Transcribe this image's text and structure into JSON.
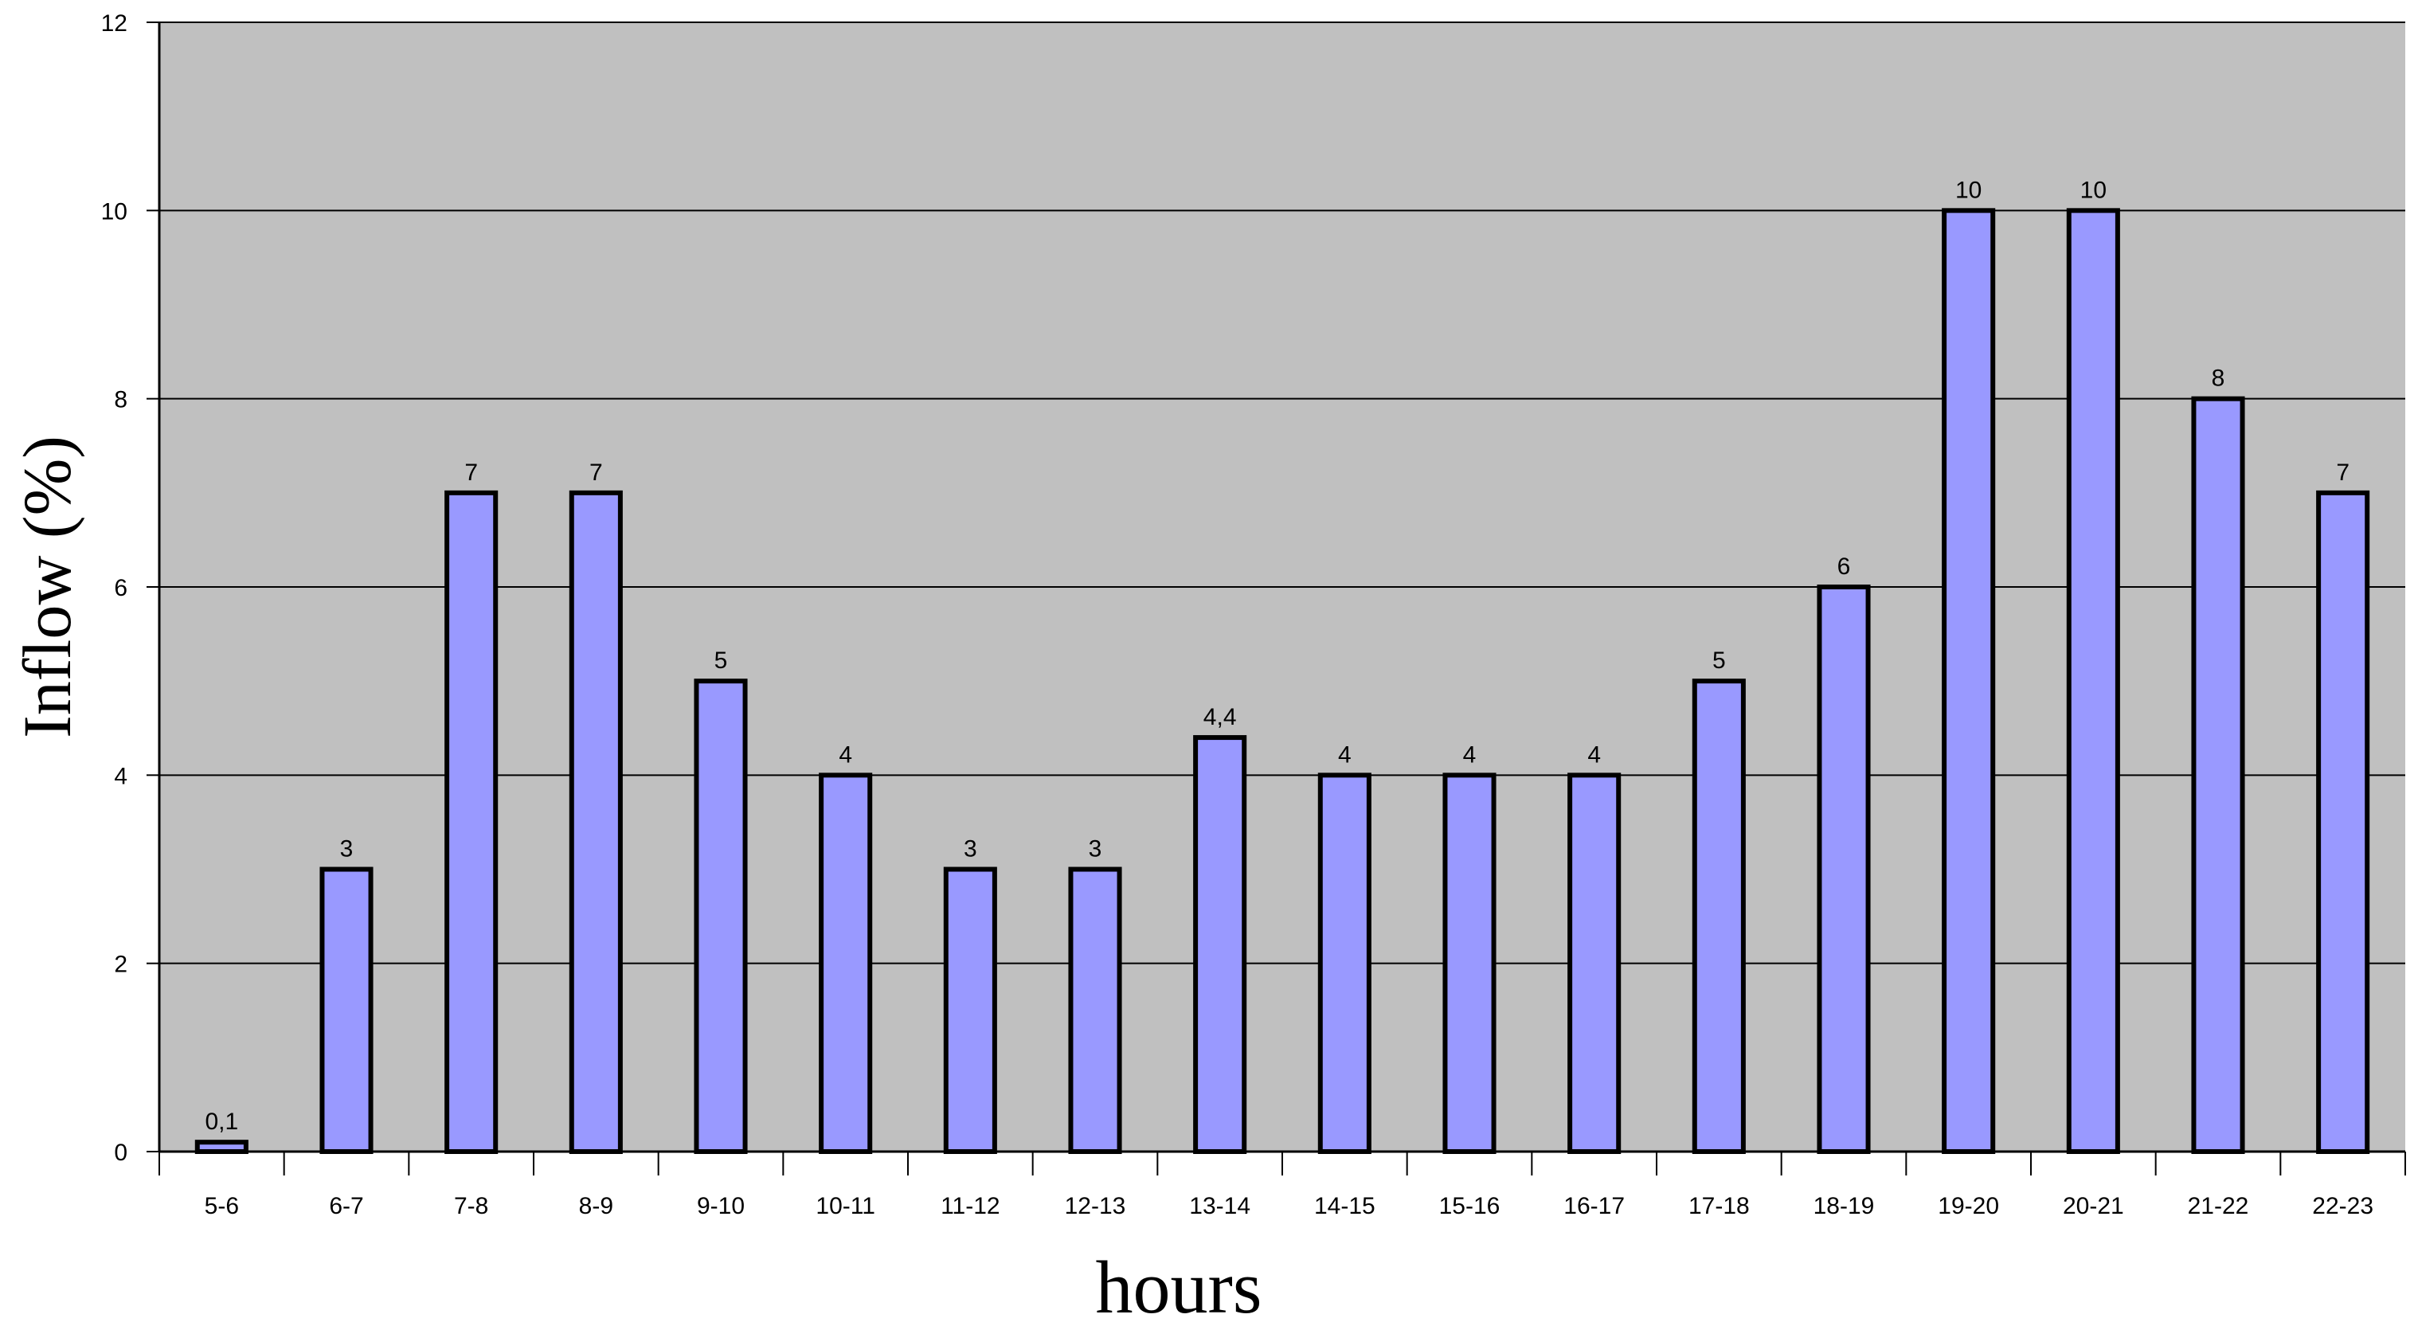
{
  "chart_data": {
    "type": "bar",
    "xlabel": "hours",
    "ylabel": "Inflow (%)",
    "ylim": [
      0,
      12
    ],
    "yticks": [
      0,
      2,
      4,
      6,
      8,
      10,
      12
    ],
    "grid": true,
    "categories": [
      "5-6",
      "6-7",
      "7-8",
      "8-9",
      "9-10",
      "10-11",
      "11-12",
      "12-13",
      "13-14",
      "14-15",
      "15-16",
      "16-17",
      "17-18",
      "18-19",
      "19-20",
      "20-21",
      "21-22",
      "22-23"
    ],
    "values": [
      0.1,
      3,
      7,
      7,
      5,
      4,
      3,
      3,
      4.4,
      4,
      4,
      4,
      5,
      6,
      10,
      10,
      8,
      7
    ],
    "data_labels": [
      "0,1",
      "3",
      "7",
      "7",
      "5",
      "4",
      "3",
      "3",
      "4,4",
      "4",
      "4",
      "4",
      "5",
      "6",
      "10",
      "10",
      "8",
      "7"
    ],
    "colors": {
      "plot_background": "#c0c0c0",
      "bar_fill": "#9999ff",
      "bar_stroke": "#000000",
      "gridline": "#000000"
    }
  }
}
